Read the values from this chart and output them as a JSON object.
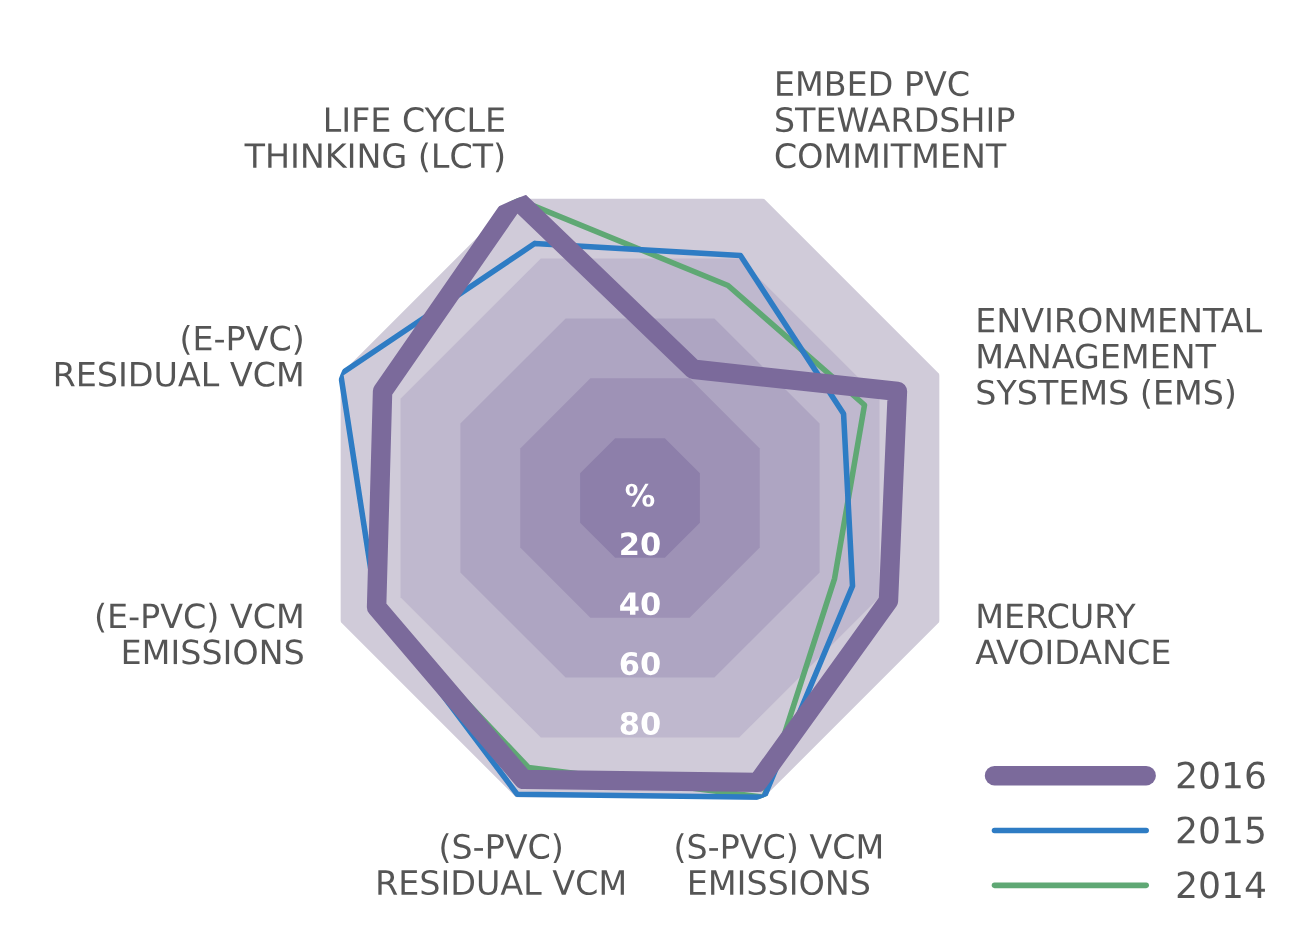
{
  "chart_data": {
    "type": "radar",
    "categories": [
      "LIFE CYCLE\nTHINKING (LCT)",
      "EMBED PVC\nSTEWARDSHIP\nCOMMITMENT",
      "ENVIRONMENTAL\nMANAGEMENT\nSYSTEMS (EMS)",
      "MERCURY\nAVOIDANCE",
      "(S-PVC) VCM\nEMISSIONS",
      "(S-PVC)\nRESIDUAL VCM",
      "(E-PVC) VCM\nEMISSIONS",
      "(E-PVC)\nRESIDUAL VCM"
    ],
    "series": [
      {
        "name": "2016",
        "color": "#7b6a9b",
        "values": [
          100,
          43,
          86,
          83,
          95,
          94,
          88,
          86
        ]
      },
      {
        "name": "2015",
        "color": "#2e7cc4",
        "values": [
          85,
          81,
          68,
          71,
          100,
          99,
          88,
          100
        ]
      },
      {
        "name": "2014",
        "color": "#5fa874",
        "values": [
          100,
          71,
          75,
          65,
          100,
          90,
          88,
          86
        ]
      }
    ],
    "ylim": [
      0,
      100
    ],
    "yticks": [
      {
        "value": 0,
        "label": "%"
      },
      20,
      40,
      60,
      80
    ],
    "grid": true,
    "legend": "bottom right"
  }
}
